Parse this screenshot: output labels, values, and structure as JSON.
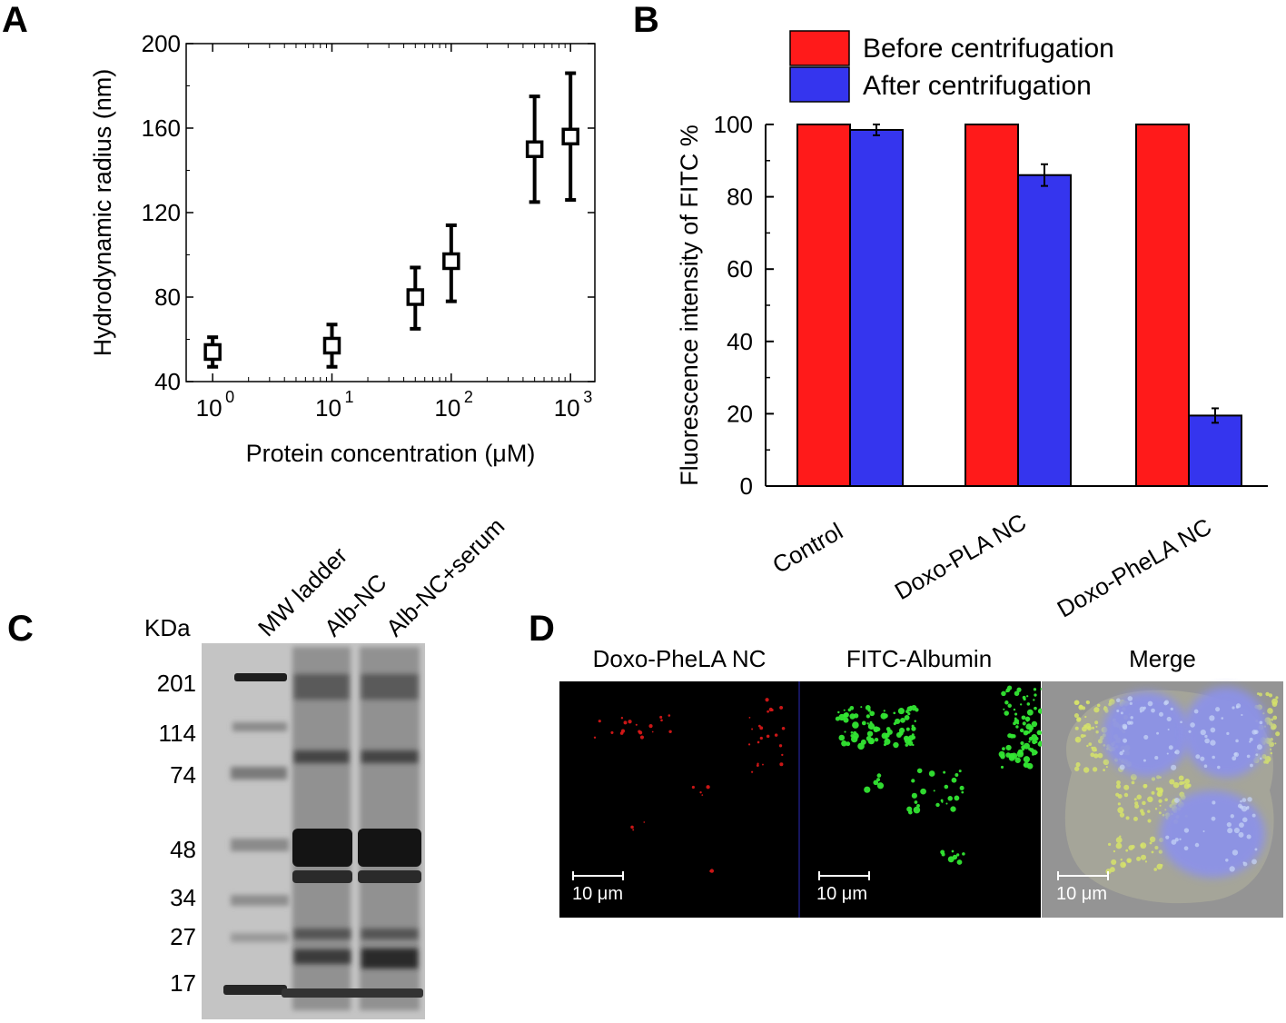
{
  "chart_data": [
    {
      "panel": "A",
      "type": "scatter",
      "xlabel": "Protein concentration (μM)",
      "ylabel": "Hydrodynamic radius (nm)",
      "xscale": "log",
      "xlim": [
        0.6,
        1600
      ],
      "ylim": [
        40,
        200
      ],
      "yticks": [
        40,
        80,
        120,
        160,
        200
      ],
      "xticks": [
        {
          "value": 1,
          "base": "10",
          "exp": "0"
        },
        {
          "value": 10,
          "base": "10",
          "exp": "1"
        },
        {
          "value": 100,
          "base": "10",
          "exp": "2"
        },
        {
          "value": 1000,
          "base": "10",
          "exp": "3"
        }
      ],
      "points": [
        {
          "x": 1,
          "y": 54,
          "err_low": 47,
          "err_high": 61
        },
        {
          "x": 10,
          "y": 57,
          "err_low": 47,
          "err_high": 67
        },
        {
          "x": 50,
          "y": 80,
          "err_low": 65,
          "err_high": 94
        },
        {
          "x": 100,
          "y": 97,
          "err_low": 78,
          "err_high": 114
        },
        {
          "x": 500,
          "y": 150,
          "err_low": 125,
          "err_high": 175
        },
        {
          "x": 1000,
          "y": 156,
          "err_low": 126,
          "err_high": 186
        }
      ],
      "marker": "open-square",
      "grid": false
    },
    {
      "panel": "B",
      "type": "bar",
      "categories": [
        "Control",
        "Doxo-PLA NC",
        "Doxo-PheLA NC"
      ],
      "series": [
        {
          "name": "Before centrifugation",
          "values": [
            100,
            100,
            100
          ],
          "errors": [
            0,
            0,
            0
          ],
          "color": "#ff1a1a"
        },
        {
          "name": "After centrifugation",
          "values": [
            98.5,
            86,
            19.5
          ],
          "errors": [
            1.5,
            3,
            2
          ],
          "color": "#3535ee"
        }
      ],
      "ylabel": "Fluorescence intensity of FITC %",
      "ylim": [
        0,
        100
      ],
      "yticks": [
        0,
        20,
        40,
        60,
        80,
        100
      ],
      "legend_position": "top",
      "grid": false
    }
  ],
  "panels": {
    "A": {
      "letter": "A"
    },
    "B": {
      "letter": "B"
    },
    "C": {
      "letter": "C",
      "unit_label": "KDa",
      "lanes": [
        "MW ladder",
        "Alb-NC",
        "Alb-NC+serum"
      ],
      "markers": [
        "201",
        "114",
        "74",
        "48",
        "34",
        "27",
        "17"
      ]
    },
    "D": {
      "letter": "D",
      "images": [
        {
          "title": "Doxo-PheLA NC",
          "scale": "10 μm"
        },
        {
          "title": "FITC-Albumin",
          "scale": "10 μm"
        },
        {
          "title": "Merge",
          "scale": "10 μm"
        }
      ]
    }
  },
  "colors": {
    "before": "#ff1a1a",
    "after": "#3535ee",
    "doxo_signal": "#e01818",
    "fitc_signal": "#33e633",
    "nucleus": "#8f93e6",
    "gel_band": "#2a2a2a"
  }
}
